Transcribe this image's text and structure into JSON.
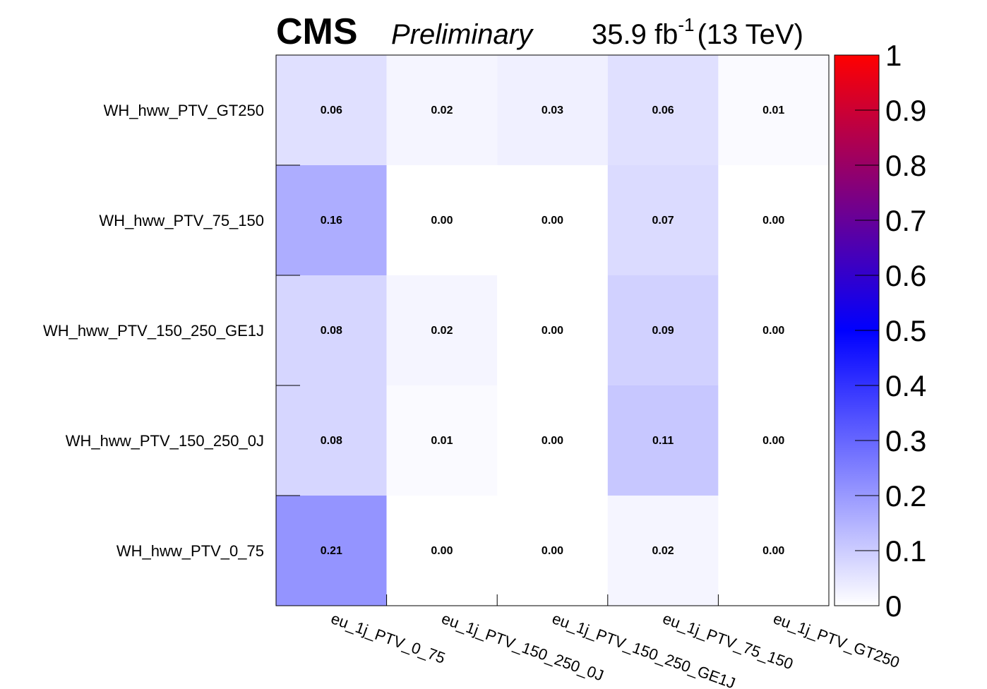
{
  "header": {
    "experiment": "CMS",
    "status": "Preliminary",
    "luminosity": "35.9 fb",
    "lumi_exponent": "-1",
    "energy": "(13 TeV)"
  },
  "chart_data": {
    "type": "heatmap",
    "x_categories": [
      "eu_1j_PTV_0_75",
      "eu_1j_PTV_150_250_0J",
      "eu_1j_PTV_150_250_GE1J",
      "eu_1j_PTV_75_150",
      "eu_1j_PTV_GT250"
    ],
    "y_categories": [
      "WH_hww_PTV_0_75",
      "WH_hww_PTV_150_250_0J",
      "WH_hww_PTV_150_250_GE1J",
      "WH_hww_PTV_75_150",
      "WH_hww_PTV_GT250"
    ],
    "values": [
      [
        0.21,
        0.0,
        0.0,
        0.02,
        0.0
      ],
      [
        0.08,
        0.01,
        0.0,
        0.11,
        0.0
      ],
      [
        0.08,
        0.02,
        0.0,
        0.09,
        0.0
      ],
      [
        0.16,
        0.0,
        0.0,
        0.07,
        0.0
      ],
      [
        0.06,
        0.02,
        0.03,
        0.06,
        0.01
      ]
    ],
    "labels": [
      [
        "0.21",
        "0.00",
        "0.00",
        "0.02",
        "0.00"
      ],
      [
        "0.08",
        "0.01",
        "0.00",
        "0.11",
        "0.00"
      ],
      [
        "0.08",
        "0.02",
        "0.00",
        "0.09",
        "0.00"
      ],
      [
        "0.16",
        "0.00",
        "0.00",
        "0.07",
        "0.00"
      ],
      [
        "0.06",
        "0.02",
        "0.03",
        "0.06",
        "0.01"
      ]
    ],
    "colorbar": {
      "range": [
        0,
        1
      ],
      "ticks": [
        0,
        0.1,
        0.2,
        0.3,
        0.4,
        0.5,
        0.6,
        0.7,
        0.8,
        0.9,
        1
      ],
      "tick_labels": [
        "0",
        "0.1",
        "0.2",
        "0.3",
        "0.4",
        "0.5",
        "0.6",
        "0.7",
        "0.8",
        "0.9",
        "1"
      ],
      "colors": [
        "#ffffff",
        "#0000ff",
        "#ff0000"
      ]
    },
    "grid": false
  }
}
